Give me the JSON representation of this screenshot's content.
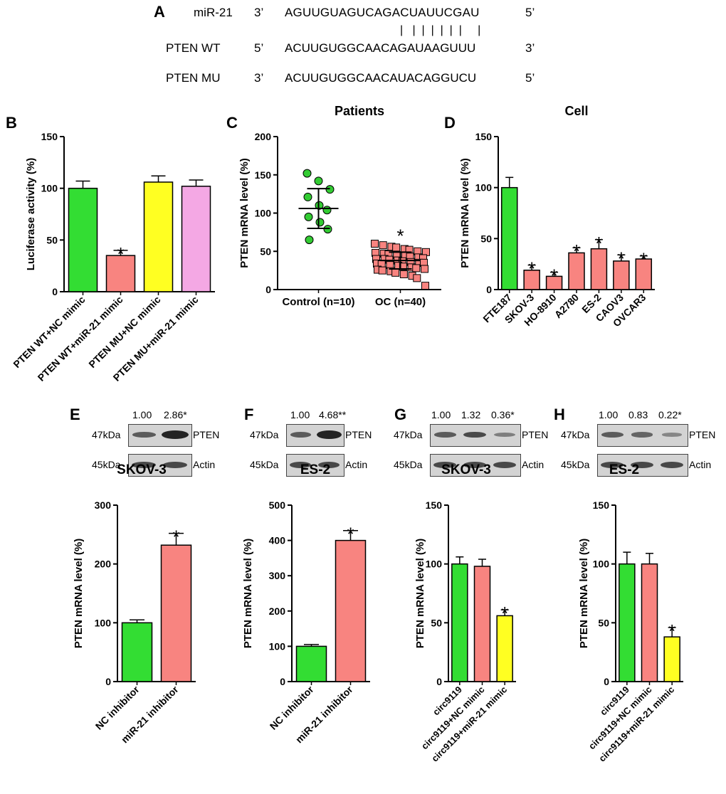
{
  "panel_a": {
    "letter": "A",
    "rows": [
      {
        "name": "miR-21",
        "end_left": "3’",
        "seq": "AGUUGUAGUCAGACUAUUCGAU",
        "end_right": "5’"
      },
      {
        "name": "PTEN WT",
        "end_left": "5’",
        "seq": "ACUUGUGGCAACAGAUAAGUUU",
        "end_right": "3’"
      },
      {
        "name": "PTEN MU",
        "end_left": "3’",
        "seq": "ACUUGUGGCAACAUACAGGUCU",
        "end_right": "5’"
      }
    ],
    "pairing": "|   |  |  |  |  |  |     |"
  },
  "blots": [
    {
      "letter": "E",
      "quant": [
        "1.00",
        "2.86*"
      ],
      "rows": [
        {
          "kda": "47kDa",
          "protein": "PTEN"
        },
        {
          "kda": "45kDa",
          "protein": "Actin"
        }
      ]
    },
    {
      "letter": "F",
      "quant": [
        "1.00",
        "4.68**"
      ],
      "rows": [
        {
          "kda": "47kDa",
          "protein": "PTEN"
        },
        {
          "kda": "45kDa",
          "protein": "Actin"
        }
      ]
    },
    {
      "letter": "G",
      "quant": [
        "1.00",
        "1.32",
        "0.36*"
      ],
      "rows": [
        {
          "kda": "47kDa",
          "protein": "PTEN"
        },
        {
          "kda": "45kDa",
          "protein": "Actin"
        }
      ]
    },
    {
      "letter": "H",
      "quant": [
        "1.00",
        "0.83",
        "0.22*"
      ],
      "rows": [
        {
          "kda": "47kDa",
          "protein": "PTEN"
        },
        {
          "kda": "45kDa",
          "protein": "Actin"
        }
      ]
    }
  ],
  "chart_data": [
    {
      "id": "B",
      "letter": "B",
      "type": "bar",
      "title": "",
      "ylabel": "Luciferase activity (%)",
      "ylim": [
        0,
        150
      ],
      "yticks": [
        0,
        50,
        100,
        150
      ],
      "categories": [
        "PTEN WT+NC mimic",
        "PTEN WT+miR-21 mimic",
        "PTEN MU+NC mimic",
        "PTEN MU+miR-21 mimic"
      ],
      "values": [
        100,
        35,
        106,
        102
      ],
      "errors": [
        7,
        5,
        6,
        6
      ],
      "colors": [
        "#33dd33",
        "#f88480",
        "#ffff22",
        "#f4a8e4"
      ],
      "stars": [
        "",
        "*",
        "",
        ""
      ]
    },
    {
      "id": "C",
      "letter": "C",
      "type": "scatter",
      "title": "Patients",
      "ylabel": "PTEN mRNA level (%)",
      "ylim": [
        0,
        200
      ],
      "yticks": [
        0,
        50,
        100,
        150,
        200
      ],
      "categories": [
        "Control (n=10)",
        "OC (n=40)"
      ],
      "series": [
        {
          "category": "Control (n=10)",
          "color": "#33cc33",
          "marker": "circle",
          "mean": 106,
          "sd": 26,
          "values": [
            152,
            142,
            131,
            121,
            110,
            104,
            95,
            88,
            79,
            65
          ],
          "star": ""
        },
        {
          "category": "OC (n=40)",
          "color": "#f88480",
          "marker": "square",
          "mean": 38,
          "sd": 11,
          "values": [
            60,
            58,
            56,
            55,
            53,
            52,
            50,
            49,
            48,
            47,
            46,
            45,
            44,
            43,
            42,
            41,
            40,
            40,
            39,
            38,
            37,
            36,
            35,
            35,
            34,
            33,
            32,
            31,
            30,
            29,
            28,
            27,
            26,
            25,
            24,
            22,
            20,
            18,
            15,
            5
          ],
          "star": "*"
        }
      ]
    },
    {
      "id": "D",
      "letter": "D",
      "type": "bar",
      "title": "Cell",
      "ylabel": "PTEN mRNA level (%)",
      "ylim": [
        0,
        150
      ],
      "yticks": [
        0,
        50,
        100,
        150
      ],
      "categories": [
        "FTE187",
        "SKOV-3",
        "HO-8910",
        "A2780",
        "ES-2",
        "CAOV3",
        "OVCAR3"
      ],
      "values": [
        100,
        19,
        13,
        36,
        40,
        28,
        30
      ],
      "errors": [
        10,
        5,
        4,
        5,
        9,
        6,
        3
      ],
      "colors": [
        "#33dd33",
        "#f88480",
        "#f88480",
        "#f88480",
        "#f88480",
        "#f88480",
        "#f88480"
      ],
      "stars": [
        "",
        "*",
        "*",
        "*",
        "*",
        "*",
        "*"
      ]
    },
    {
      "id": "E2",
      "letter": "",
      "type": "bar",
      "title": "SKOV-3",
      "ylabel": "PTEN mRNA level (%)",
      "ylim": [
        0,
        300
      ],
      "yticks": [
        0,
        100,
        200,
        300
      ],
      "categories": [
        "NC inhibitor",
        "miR-21 inhibitor"
      ],
      "values": [
        100,
        232
      ],
      "errors": [
        5,
        20
      ],
      "colors": [
        "#33dd33",
        "#f88480"
      ],
      "stars": [
        "",
        "*"
      ]
    },
    {
      "id": "F2",
      "letter": "",
      "type": "bar",
      "title": "ES-2",
      "ylabel": "PTEN mRNA level (%)",
      "ylim": [
        0,
        500
      ],
      "yticks": [
        0,
        100,
        200,
        300,
        400,
        500
      ],
      "categories": [
        "NC inhibitor",
        "miR-21 inhibitor"
      ],
      "values": [
        100,
        400
      ],
      "errors": [
        5,
        28
      ],
      "colors": [
        "#33dd33",
        "#f88480"
      ],
      "stars": [
        "",
        "*"
      ]
    },
    {
      "id": "G2",
      "letter": "",
      "type": "bar",
      "title": "SKOV-3",
      "ylabel": "PTEN mRNA level (%)",
      "ylim": [
        0,
        150
      ],
      "yticks": [
        0,
        50,
        100,
        150
      ],
      "categories": [
        "circ9119",
        "circ9119+NC mimic",
        "circ9119+miR-21 mimic"
      ],
      "values": [
        100,
        98,
        56
      ],
      "errors": [
        6,
        6,
        5
      ],
      "colors": [
        "#33dd33",
        "#f88480",
        "#ffff22"
      ],
      "stars": [
        "",
        "",
        "*"
      ]
    },
    {
      "id": "H2",
      "letter": "",
      "type": "bar",
      "title": "ES-2",
      "ylabel": "PTEN mRNA level (%)",
      "ylim": [
        0,
        150
      ],
      "yticks": [
        0,
        50,
        100,
        150
      ],
      "categories": [
        "circ9119",
        "circ9119+NC mimic",
        "circ9119+miR-21 mimic"
      ],
      "values": [
        100,
        100,
        38
      ],
      "errors": [
        10,
        9,
        8
      ],
      "colors": [
        "#33dd33",
        "#f88480",
        "#ffff22"
      ],
      "stars": [
        "",
        "",
        "*"
      ]
    }
  ]
}
